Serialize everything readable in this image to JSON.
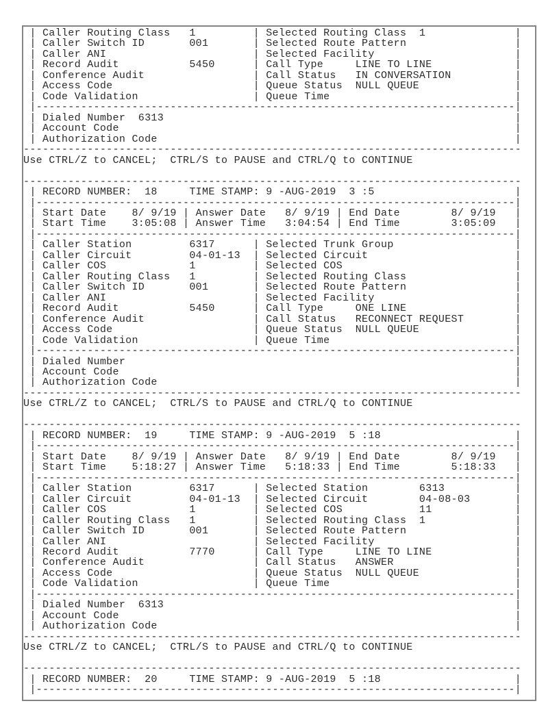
{
  "page": {
    "background_color": "#ffffff",
    "border_color": "#848484",
    "text_color": "#2b2b2b"
  },
  "terminal": {
    "control_hint": "Use CTRL/Z to CANCEL;  CTRL/S to PAUSE and CTRL/Q to CONTINUE",
    "lines": [
      " | Caller Routing Class   1         | Selected Routing Class  1",
      " | Caller Switch ID       001       | Selected Route Pattern",
      " | Caller ANI                       | Selected Facility",
      " | Record Audit           5450      | Call Type     LINE TO LINE",
      " | Conference Audit                 | Call Status   IN CONVERSATION",
      " | Access Code                      | Queue Status  NULL QUEUE",
      " | Code Validation                  | Queue Time",
      " |---------------------------------------------------------------------------",
      " | Dialed Number  6313",
      " | Account Code",
      " | Authorization Code",
      "------------------------------------------------------------------------------",
      "Use CTRL/Z to CANCEL;  CTRL/S to PAUSE and CTRL/Q to CONTINUE",
      "",
      "------------------------------------------------------------------------------",
      " | RECORD NUMBER:  18     TIME STAMP: 9 -AUG-2019  3 :5",
      " |---------------------------------------------------------------------------",
      " | Start Date    8/ 9/19 | Answer Date   8/ 9/19 | End Date        8/ 9/19",
      " | Start Time    3:05:08 | Answer Time   3:04:54 | End Time        3:05:09",
      " |---------------------------------------------------------------------------",
      " | Caller Station         6317      | Selected Trunk Group",
      " | Caller Circuit         04-01-13  | Selected Circuit",
      " | Caller COS             1         | Selected COS",
      " | Caller Routing Class   1         | Selected Routing Class",
      " | Caller Switch ID       001       | Selected Route Pattern",
      " | Caller ANI                       | Selected Facility",
      " | Record Audit           5450      | Call Type     ONE LINE",
      " | Conference Audit                 | Call Status   RECONNECT REQUEST",
      " | Access Code                      | Queue Status  NULL QUEUE",
      " | Code Validation                  | Queue Time",
      " |---------------------------------------------------------------------------",
      " | Dialed Number",
      " | Account Code",
      " | Authorization Code",
      "------------------------------------------------------------------------------",
      "Use CTRL/Z to CANCEL;  CTRL/S to PAUSE and CTRL/Q to CONTINUE",
      "",
      "------------------------------------------------------------------------------",
      " | RECORD NUMBER:  19     TIME STAMP: 9 -AUG-2019  5 :18",
      " |---------------------------------------------------------------------------",
      " | Start Date    8/ 9/19 | Answer Date   8/ 9/19 | End Date        8/ 9/19",
      " | Start Time    5:18:27 | Answer Time   5:18:33 | End Time        5:18:33",
      " |---------------------------------------------------------------------------",
      " | Caller Station         6317      | Selected Station        6313",
      " | Caller Circuit         04-01-13  | Selected Circuit        04-08-03",
      " | Caller COS             1         | Selected COS            11",
      " | Caller Routing Class   1         | Selected Routing Class  1",
      " | Caller Switch ID       001       | Selected Route Pattern",
      " | Caller ANI                       | Selected Facility",
      " | Record Audit           7770      | Call Type     LINE TO LINE",
      " | Conference Audit                 | Call Status   ANSWER",
      " | Access Code                      | Queue Status  NULL QUEUE",
      " | Code Validation                  | Queue Time",
      " |---------------------------------------------------------------------------",
      " | Dialed Number  6313",
      " | Account Code",
      " | Authorization Code",
      "------------------------------------------------------------------------------",
      "Use CTRL/Z to CANCEL;  CTRL/S to PAUSE and CTRL/Q to CONTINUE",
      "",
      "------------------------------------------------------------------------------",
      " | RECORD NUMBER:  20     TIME STAMP: 9 -AUG-2019  5 :18",
      " |---------------------------------------------------------------------------"
    ]
  },
  "records": [
    {
      "caller": {
        "Caller Routing Class": "1",
        "Caller Switch ID": "001",
        "Caller ANI": "",
        "Record Audit": "5450",
        "Conference Audit": "",
        "Access Code": "",
        "Code Validation": ""
      },
      "selected": {
        "Selected Routing Class": "1",
        "Selected Route Pattern": "",
        "Selected Facility": "",
        "Call Type": "LINE TO LINE",
        "Call Status": "IN CONVERSATION",
        "Queue Status": "NULL QUEUE",
        "Queue Time": ""
      },
      "Dialed Number": "6313",
      "Account Code": "",
      "Authorization Code": ""
    },
    {
      "record_number": "18",
      "time_stamp": "9 -AUG-2019  3 :5",
      "Start Date": "8/ 9/19",
      "Start Time": "3:05:08",
      "Answer Date": "8/ 9/19",
      "Answer Time": "3:04:54",
      "End Date": "8/ 9/19",
      "End Time": "3:05:09",
      "caller": {
        "Caller Station": "6317",
        "Caller Circuit": "04-01-13",
        "Caller COS": "1",
        "Caller Routing Class": "1",
        "Caller Switch ID": "001",
        "Caller ANI": "",
        "Record Audit": "5450",
        "Conference Audit": "",
        "Access Code": "",
        "Code Validation": ""
      },
      "selected": {
        "Selected Trunk Group": "",
        "Selected Circuit": "",
        "Selected COS": "",
        "Selected Routing Class": "",
        "Selected Route Pattern": "",
        "Selected Facility": "",
        "Call Type": "ONE LINE",
        "Call Status": "RECONNECT REQUEST",
        "Queue Status": "NULL QUEUE",
        "Queue Time": ""
      },
      "Dialed Number": "",
      "Account Code": "",
      "Authorization Code": ""
    },
    {
      "record_number": "19",
      "time_stamp": "9 -AUG-2019  5 :18",
      "Start Date": "8/ 9/19",
      "Start Time": "5:18:27",
      "Answer Date": "8/ 9/19",
      "Answer Time": "5:18:33",
      "End Date": "8/ 9/19",
      "End Time": "5:18:33",
      "caller": {
        "Caller Station": "6317",
        "Caller Circuit": "04-01-13",
        "Caller COS": "1",
        "Caller Routing Class": "1",
        "Caller Switch ID": "001",
        "Caller ANI": "",
        "Record Audit": "7770",
        "Conference Audit": "",
        "Access Code": "",
        "Code Validation": ""
      },
      "selected": {
        "Selected Station": "6313",
        "Selected Circuit": "04-08-03",
        "Selected COS": "11",
        "Selected Routing Class": "1",
        "Selected Route Pattern": "",
        "Selected Facility": "",
        "Call Type": "LINE TO LINE",
        "Call Status": "ANSWER",
        "Queue Status": "NULL QUEUE",
        "Queue Time": ""
      },
      "Dialed Number": "6313",
      "Account Code": "",
      "Authorization Code": ""
    },
    {
      "record_number": "20",
      "time_stamp": "9 -AUG-2019  5 :18"
    }
  ]
}
